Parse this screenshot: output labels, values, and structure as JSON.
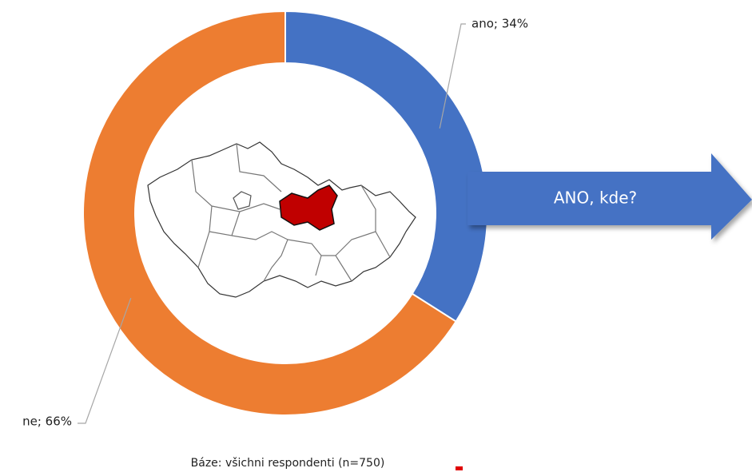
{
  "chart_data": {
    "type": "donut",
    "categories": [
      "ano",
      "ne"
    ],
    "values": [
      34,
      66
    ],
    "value_labels": [
      "ano; 34%",
      "ne; 66%"
    ],
    "colors": [
      "#4472c4",
      "#ed7d31"
    ],
    "annotation": "ANO, kde?",
    "footnote": "Báze: všichni respondenti (n=750)"
  }
}
